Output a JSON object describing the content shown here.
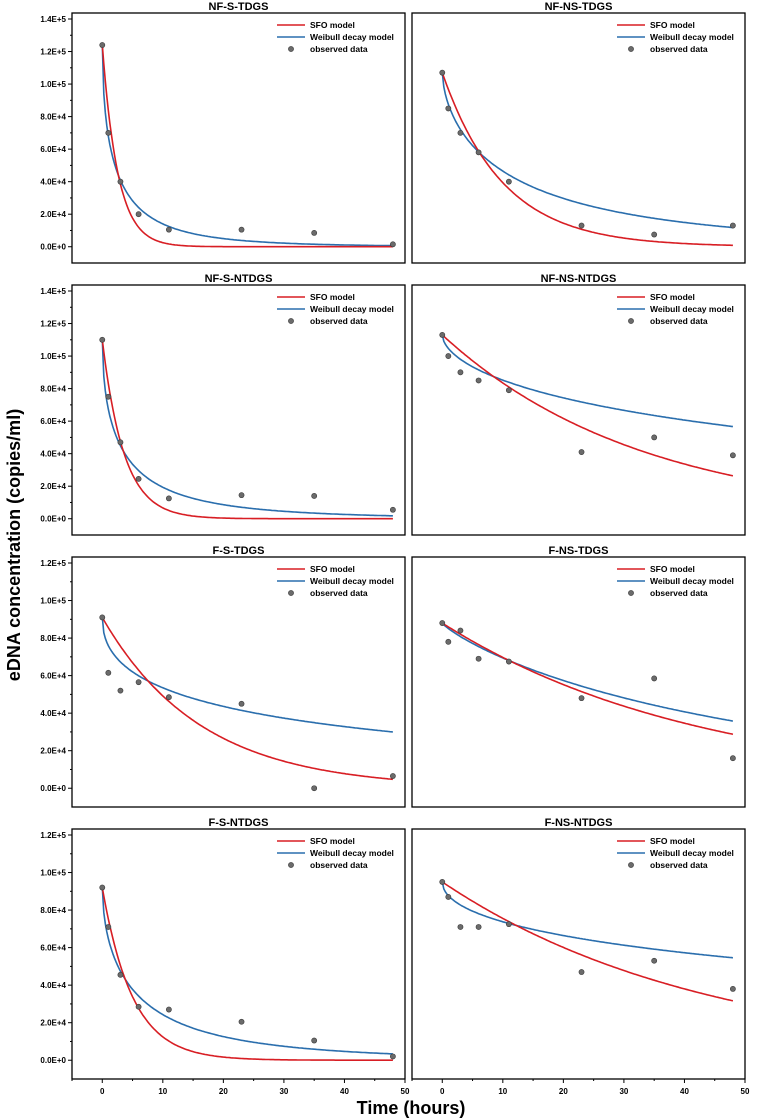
{
  "figure": {
    "ylabel": "eDNA concentration (copies/ml)",
    "xlabel": "Time (hours)",
    "x_ticks": [
      "0",
      "10",
      "20",
      "30",
      "40",
      "50"
    ],
    "legend": {
      "sfo": "SFO model",
      "weibull": "Weibull decay model",
      "observed": "observed data"
    },
    "colors": {
      "sfo": "#d81e24",
      "weibull": "#2a6ead",
      "observed": "#6b6b6b",
      "frame": "#000000"
    }
  },
  "chart_data": [
    {
      "type": "scatter",
      "title": "NF-S-TDGS",
      "xlim": [
        -5,
        50
      ],
      "ylim": [
        -10000,
        140000
      ],
      "y_ticks": [
        "0.0E+0",
        "2.0E+4",
        "4.0E+4",
        "6.0E+4",
        "8.0E+4",
        "1.0E+5",
        "1.2E+5",
        "1.4E+5"
      ],
      "observed": {
        "x": [
          0,
          1,
          3,
          6,
          11,
          23,
          35,
          48
        ],
        "y": [
          124000,
          70000,
          40000,
          20000,
          10500,
          10500,
          8500,
          1500
        ]
      },
      "sfo": {
        "C0": 124000,
        "k": 0.39
      },
      "weibull": {
        "C0": 124000,
        "alpha": 0.6,
        "beta": 0.56
      }
    },
    {
      "type": "scatter",
      "title": "NF-NS-TDGS",
      "xlim": [
        -5,
        50
      ],
      "ylim": [
        -10000,
        140000
      ],
      "y_ticks": [],
      "observed": {
        "x": [
          0,
          1,
          3,
          6,
          11,
          23,
          35,
          48
        ],
        "y": [
          107000,
          85000,
          70000,
          58000,
          40000,
          13000,
          7500,
          13000
        ]
      },
      "sfo": {
        "C0": 107000,
        "k": 0.1
      },
      "weibull": {
        "C0": 107000,
        "alpha": 0.2,
        "beta": 0.62
      }
    },
    {
      "type": "scatter",
      "title": "NF-S-NTDGS",
      "xlim": [
        -5,
        50
      ],
      "ylim": [
        -10000,
        140000
      ],
      "y_ticks": [
        "0.0E+0",
        "2.0E+4",
        "4.0E+4",
        "6.0E+4",
        "8.0E+4",
        "1.0E+5",
        "1.2E+5",
        "1.4E+5"
      ],
      "observed": {
        "x": [
          0,
          1,
          3,
          6,
          11,
          23,
          35,
          48
        ],
        "y": [
          110000,
          75000,
          47000,
          24500,
          12500,
          14500,
          14000,
          5500
        ]
      },
      "sfo": {
        "C0": 110000,
        "k": 0.28
      },
      "weibull": {
        "C0": 110000,
        "alpha": 0.49,
        "beta": 0.55
      }
    },
    {
      "type": "scatter",
      "title": "NF-NS-NTDGS",
      "xlim": [
        -5,
        50
      ],
      "ylim": [
        -10000,
        140000
      ],
      "y_ticks": [],
      "observed": {
        "x": [
          0,
          1,
          3,
          6,
          11,
          23,
          35,
          48
        ],
        "y": [
          113000,
          100000,
          90000,
          85000,
          79000,
          41000,
          50000,
          39000
        ]
      },
      "sfo": {
        "C0": 113000,
        "k": 0.0303
      },
      "weibull": {
        "C0": 113000,
        "alpha": 0.076,
        "beta": 0.57
      }
    },
    {
      "type": "scatter",
      "title": "F-S-TDGS",
      "xlim": [
        -5,
        50
      ],
      "ylim": [
        -10000,
        120000
      ],
      "y_ticks": [
        "0.0E+0",
        "2.0E+4",
        "4.0E+4",
        "6.0E+4",
        "8.0E+4",
        "1.0E+5",
        "1.2E+5"
      ],
      "observed": {
        "x": [
          0,
          1,
          3,
          6,
          11,
          23,
          35,
          48
        ],
        "y": [
          91000,
          61500,
          52000,
          56500,
          48500,
          45000,
          0,
          6500
        ]
      },
      "sfo": {
        "C0": 91000,
        "k": 0.0615
      },
      "weibull": {
        "C0": 91000,
        "alpha": 0.18,
        "beta": 0.47
      }
    },
    {
      "type": "scatter",
      "title": "F-NS-TDGS",
      "xlim": [
        -5,
        50
      ],
      "ylim": [
        -10000,
        120000
      ],
      "y_ticks": [],
      "observed": {
        "x": [
          0,
          1,
          3,
          6,
          11,
          23,
          35,
          48
        ],
        "y": [
          88000,
          78000,
          84000,
          69000,
          67500,
          48000,
          58500,
          16000
        ]
      },
      "sfo": {
        "C0": 88000,
        "k": 0.0233
      },
      "weibull": {
        "C0": 88000,
        "alpha": 0.0335,
        "beta": 0.85
      }
    },
    {
      "type": "scatter",
      "title": "F-S-NTDGS",
      "xlim": [
        -5,
        50
      ],
      "ylim": [
        -10000,
        120000
      ],
      "y_ticks": [
        "0.0E+0",
        "2.0E+4",
        "4.0E+4",
        "6.0E+4",
        "8.0E+4",
        "1.0E+5",
        "1.2E+5"
      ],
      "observed": {
        "x": [
          0,
          1,
          3,
          6,
          11,
          23,
          35,
          48
        ],
        "y": [
          92000,
          71000,
          45500,
          28500,
          27000,
          20500,
          10500,
          2000
        ]
      },
      "sfo": {
        "C0": 92000,
        "k": 0.2
      },
      "weibull": {
        "C0": 92000,
        "alpha": 0.35,
        "beta": 0.58
      }
    },
    {
      "type": "scatter",
      "title": "F-NS-NTDGS",
      "xlim": [
        -5,
        50
      ],
      "ylim": [
        -10000,
        120000
      ],
      "y_ticks": [],
      "observed": {
        "x": [
          0,
          1,
          3,
          6,
          11,
          23,
          35,
          48
        ],
        "y": [
          95000,
          87000,
          71000,
          71000,
          72500,
          47000,
          53000,
          38000
        ]
      },
      "sfo": {
        "C0": 95000,
        "k": 0.0229
      },
      "weibull": {
        "C0": 95000,
        "alpha": 0.08,
        "beta": 0.5
      }
    }
  ]
}
